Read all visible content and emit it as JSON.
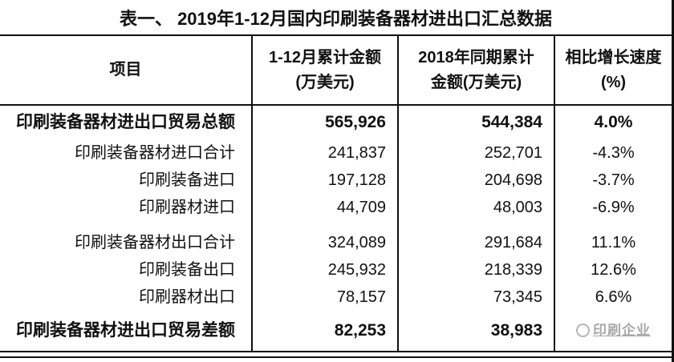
{
  "page": {
    "title": "表一、 2019年1-12月国内印刷装备器材进出口汇总数据"
  },
  "table": {
    "columns": [
      "项目",
      "1-12月累计金额\n(万美元)",
      "2018年同期累计\n金额(万美元)",
      "相比增长速度\n(%)"
    ],
    "rows": [
      {
        "label": "印刷装备器材进出口贸易总额",
        "v2019": "565,926",
        "v2018": "544,384",
        "growth": "4.0%"
      },
      {
        "label": "印刷装备器材进口合计",
        "v2019": "241,837",
        "v2018": "252,701",
        "growth": "-4.3%"
      },
      {
        "label": "印刷装备进口",
        "v2019": "197,128",
        "v2018": "204,698",
        "growth": "-3.7%"
      },
      {
        "label": "印刷器材进口",
        "v2019": "44,709",
        "v2018": "48,003",
        "growth": "-6.9%"
      },
      {
        "label": "印刷装备器材出口合计",
        "v2019": "324,089",
        "v2018": "291,684",
        "growth": "11.1%"
      },
      {
        "label": "印刷装备出口",
        "v2019": "245,932",
        "v2018": "218,339",
        "growth": "12.6%"
      },
      {
        "label": "印刷器材出口",
        "v2019": "78,157",
        "v2018": "73,345",
        "growth": "6.6%"
      },
      {
        "label": "印刷装备器材进出口贸易差额",
        "v2019": "82,253",
        "v2018": "38,983",
        "growth": ""
      }
    ]
  },
  "watermark": {
    "text": "印刷企业"
  },
  "colors": {
    "border": "#111111",
    "text": "#111111",
    "watermark": "#a8a8a8",
    "background": "#ffffff"
  }
}
